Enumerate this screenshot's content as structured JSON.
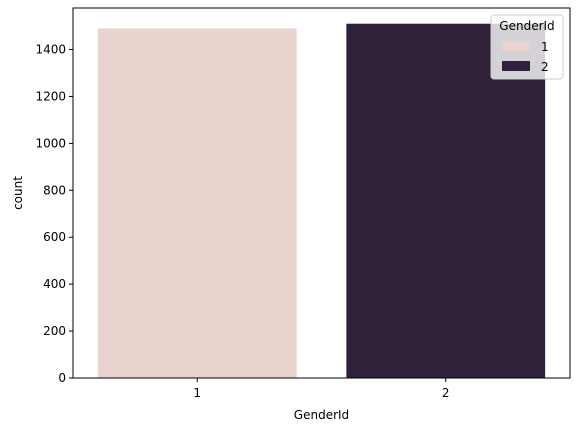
{
  "chart_data": {
    "type": "bar",
    "categories": [
      "1",
      "2"
    ],
    "values": [
      1490,
      1510
    ],
    "xlabel": "GenderId",
    "ylabel": "count",
    "ylim": [
      0,
      1577
    ],
    "yticks": [
      0,
      200,
      400,
      600,
      800,
      1000,
      1200,
      1400
    ],
    "grid": false,
    "legend": {
      "title": "GenderId",
      "placement": "top-right",
      "entries": [
        "1",
        "2"
      ]
    },
    "colors": [
      "#e8d3ce",
      "#2e2139"
    ]
  }
}
